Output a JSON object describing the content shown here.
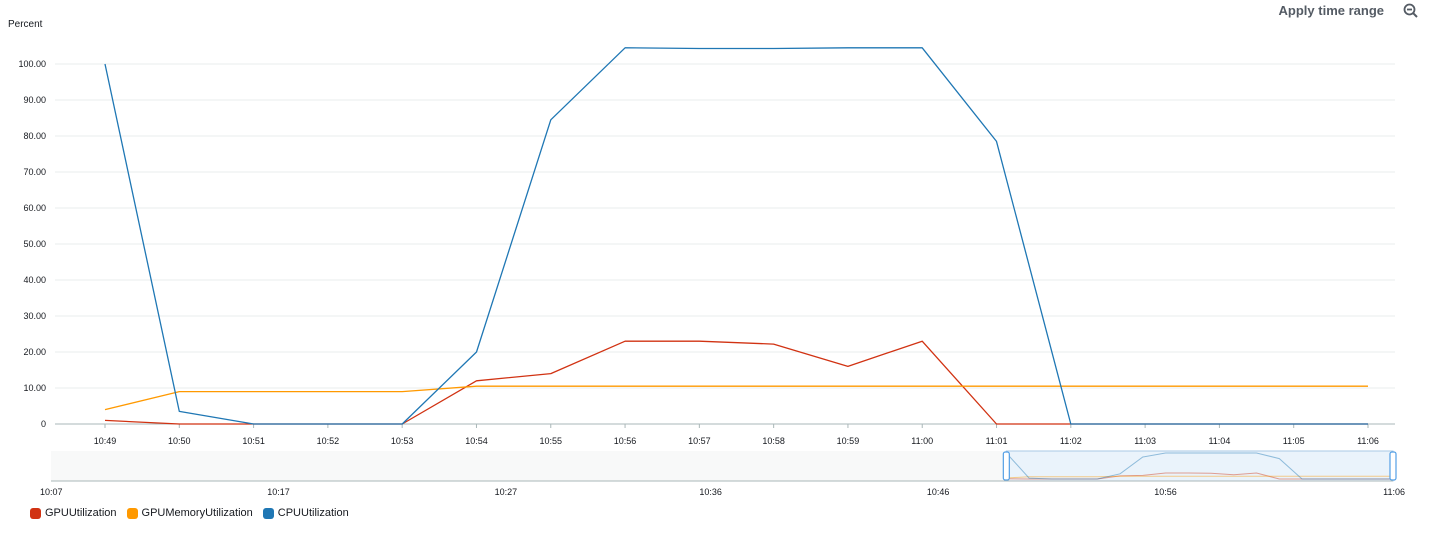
{
  "toolbar": {
    "apply_label": "Apply time range",
    "zoom_icon": "zoom-out-icon"
  },
  "chart_data": {
    "type": "line",
    "ylabel": "Percent",
    "ylim": [
      0,
      105
    ],
    "yticks": [
      "0",
      "10.00",
      "20.00",
      "30.00",
      "40.00",
      "50.00",
      "60.00",
      "70.00",
      "80.00",
      "90.00",
      "100.00"
    ],
    "categories": [
      "10:49",
      "10:50",
      "10:51",
      "10:52",
      "10:53",
      "10:54",
      "10:55",
      "10:56",
      "10:57",
      "10:58",
      "10:59",
      "11:00",
      "11:01",
      "11:02",
      "11:03",
      "11:04",
      "11:05",
      "11:06"
    ],
    "series": [
      {
        "name": "GPUUtilization",
        "color": "#d13212",
        "x": [
          "10:49",
          "10:50",
          "10:51",
          "10:52",
          "10:53",
          "10:54",
          "10:55",
          "10:56",
          "10:57",
          "10:58",
          "10:59",
          "11:00",
          "11:01",
          "11:02",
          "11:03",
          "11:04",
          "11:05",
          "11:06"
        ],
        "values": [
          1,
          0,
          0,
          0,
          0,
          12,
          14,
          23,
          23,
          22.2,
          16,
          23,
          0,
          0,
          0,
          0,
          0,
          0
        ]
      },
      {
        "name": "GPUMemoryUtilization",
        "color": "#ff9900",
        "x": [
          "10:49",
          "10:50",
          "10:51",
          "10:52",
          "10:53",
          "10:54",
          "10:55",
          "10:56",
          "10:57",
          "10:58",
          "10:59",
          "11:00",
          "11:01",
          "11:02",
          "11:03",
          "11:04",
          "11:05",
          "11:06"
        ],
        "values": [
          4,
          9,
          9,
          9,
          9,
          10.5,
          10.5,
          10.5,
          10.5,
          10.5,
          10.5,
          10.5,
          10.5,
          10.5,
          10.5,
          10.5,
          10.5,
          10.5
        ]
      },
      {
        "name": "CPUUtilization",
        "color": "#1f77b4",
        "x": [
          "10:49",
          "10:50",
          "10:51",
          "10:52",
          "10:53",
          "10:54",
          "10:55",
          "10:56",
          "10:57",
          "10:58",
          "10:59",
          "11:00",
          "11:01",
          "11:02",
          "11:03",
          "11:04",
          "11:05",
          "11:06"
        ],
        "values": [
          100,
          3.5,
          0,
          0,
          0,
          20,
          84.5,
          104.5,
          104.3,
          104.3,
          104.5,
          104.5,
          78.5,
          0,
          0,
          0,
          0,
          0
        ]
      }
    ],
    "navigator": {
      "labels": [
        "10:07",
        "10:17",
        "10:27",
        "10:36",
        "10:46",
        "10:56",
        "11:06"
      ],
      "selection_start": "10:49",
      "selection_end": "11:06"
    }
  }
}
